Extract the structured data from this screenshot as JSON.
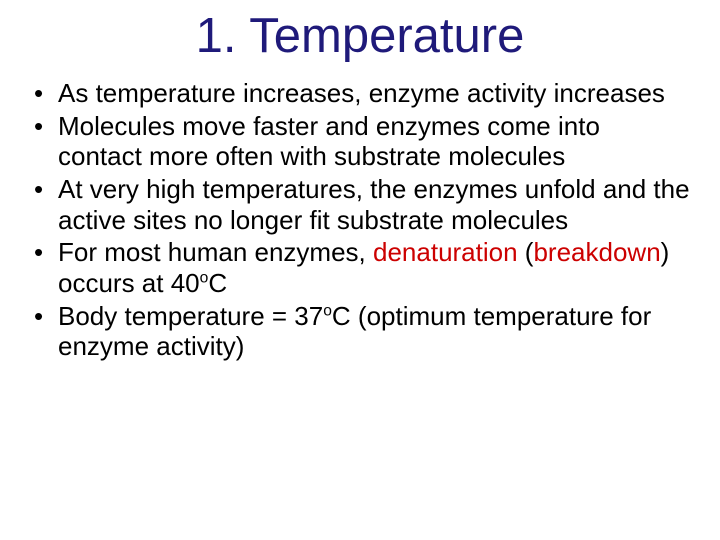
{
  "title": "1.  Temperature",
  "bullets": [
    {
      "pre": "As temperature increases, enzyme activity increases"
    },
    {
      "pre": "Molecules move faster and enzymes come into contact more often with substrate molecules"
    },
    {
      "pre": "At very high temperatures, the enzymes unfold and the active sites no longer fit substrate molecules"
    },
    {
      "pre": "For most human enzymes, ",
      "hl": "denaturation",
      "mid": " (",
      "hl2": "breakdown",
      "post": ") occurs at 40",
      "sup": "o",
      "tail": "C"
    },
    {
      "pre": "Body temperature = 37",
      "sup": "o",
      "tail": "C (optimum temperature for enzyme activity)"
    }
  ],
  "colors": {
    "title": "#1f1a7a",
    "text": "#000000",
    "highlight": "#cc0000",
    "background": "#ffffff"
  },
  "typography": {
    "title_fontsize": 49,
    "body_fontsize": 26,
    "font_family": "Arial"
  }
}
